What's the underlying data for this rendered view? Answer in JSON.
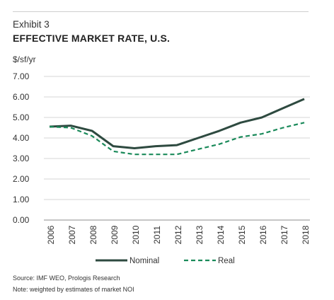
{
  "header": {
    "exhibit": "Exhibit 3",
    "title": "EFFECTIVE MARKET RATE, U.S.",
    "units": "$/sf/yr"
  },
  "footer": {
    "source": "Source: IMF WEO, Prologis Research",
    "note": "Note: weighted by estimates of market NOI"
  },
  "chart_data": {
    "type": "line",
    "x": [
      "2006",
      "2007",
      "2008",
      "2009",
      "2010",
      "2011",
      "2012",
      "2013",
      "2014",
      "2015",
      "2016",
      "2017",
      "2018"
    ],
    "ylim": [
      0,
      7
    ],
    "yticks": [
      "0.00",
      "1.00",
      "2.00",
      "3.00",
      "4.00",
      "5.00",
      "6.00",
      "7.00"
    ],
    "grid": true,
    "legend_position": "bottom",
    "series": [
      {
        "name": "Nominal",
        "style": "solid",
        "color": "#2e4a40",
        "values": [
          4.55,
          4.6,
          4.35,
          3.6,
          3.5,
          3.6,
          3.65,
          4.0,
          4.35,
          4.75,
          5.0,
          5.45,
          5.9
        ]
      },
      {
        "name": "Real",
        "style": "dashed",
        "color": "#1a8a5a",
        "values": [
          4.55,
          4.5,
          4.1,
          3.35,
          3.2,
          3.2,
          3.2,
          3.45,
          3.7,
          4.05,
          4.2,
          4.5,
          4.75
        ]
      }
    ]
  }
}
